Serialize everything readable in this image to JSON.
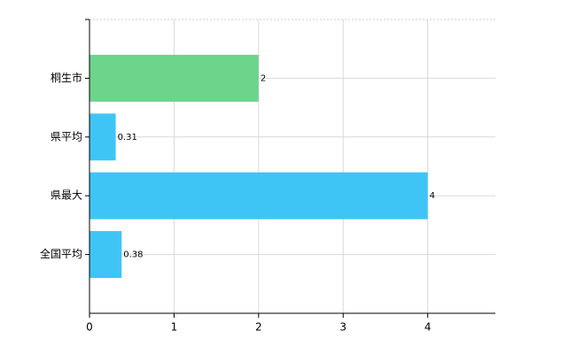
{
  "chart_data": {
    "type": "bar",
    "orientation": "horizontal",
    "categories": [
      "桐生市",
      "県平均",
      "県最大",
      "全国平均"
    ],
    "values": [
      2,
      0.31,
      4,
      0.38
    ],
    "colors": [
      "#6dd48c",
      "#3ec5f5",
      "#3ec5f5",
      "#3ec5f5"
    ],
    "xlim": [
      0,
      4.8
    ],
    "xticks": [
      0,
      1,
      2,
      3,
      4
    ],
    "grid": true
  }
}
